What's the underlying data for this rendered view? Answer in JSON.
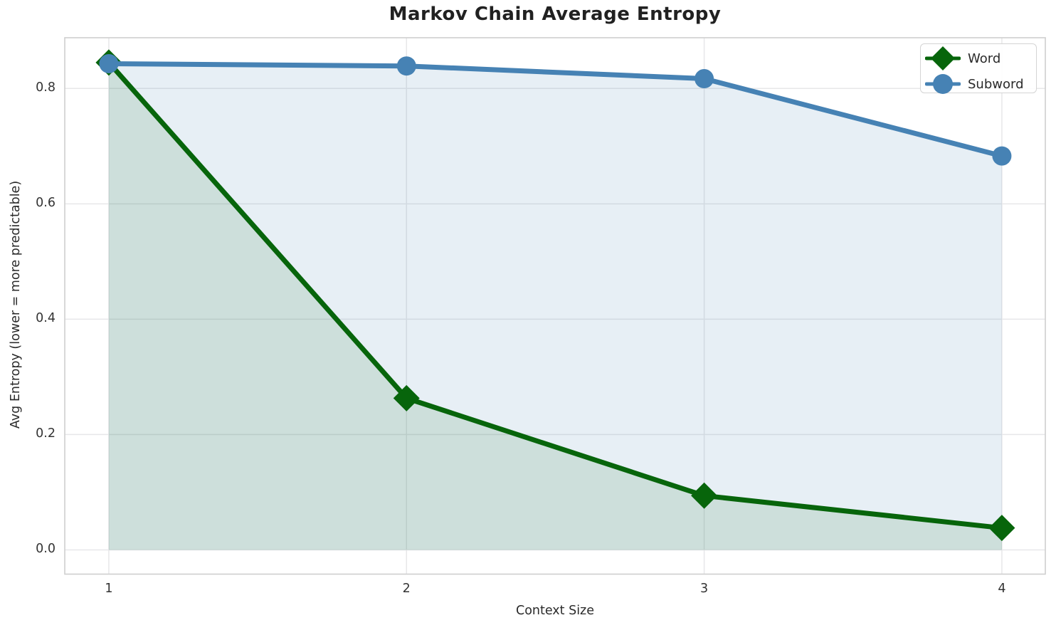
{
  "chart_data": {
    "type": "line",
    "title": "Markov Chain Average Entropy",
    "xlabel": "Context Size",
    "ylabel": "Avg Entropy (lower = more predictable)",
    "x": [
      1,
      2,
      3,
      4
    ],
    "xtick_labels": [
      "1",
      "2",
      "3",
      "4"
    ],
    "yticks": [
      0.0,
      0.2,
      0.4,
      0.6,
      0.8
    ],
    "ytick_labels": [
      "0.0",
      "0.2",
      "0.4",
      "0.6",
      "0.8"
    ],
    "xlim": [
      0.852,
      4.146
    ],
    "ylim": [
      -0.042,
      0.888
    ],
    "grid": true,
    "legend_position": "upper right",
    "series": [
      {
        "name": "Word",
        "marker": "diamond",
        "color": "#07650b",
        "fill_color": "rgba(0, 102, 10, 0.11)",
        "values": [
          0.845,
          0.263,
          0.094,
          0.038
        ]
      },
      {
        "name": "Subword",
        "marker": "circle",
        "color": "#4682b4",
        "fill_color": "rgba(70, 130, 180, 0.13)",
        "values": [
          0.843,
          0.839,
          0.817,
          0.683
        ]
      }
    ],
    "style": {
      "grid_color": "#e7e7e9",
      "spine_color": "#cfcfcf",
      "line_width": 7,
      "diamond_half": 18.5,
      "circle_radius": 13.5
    }
  }
}
